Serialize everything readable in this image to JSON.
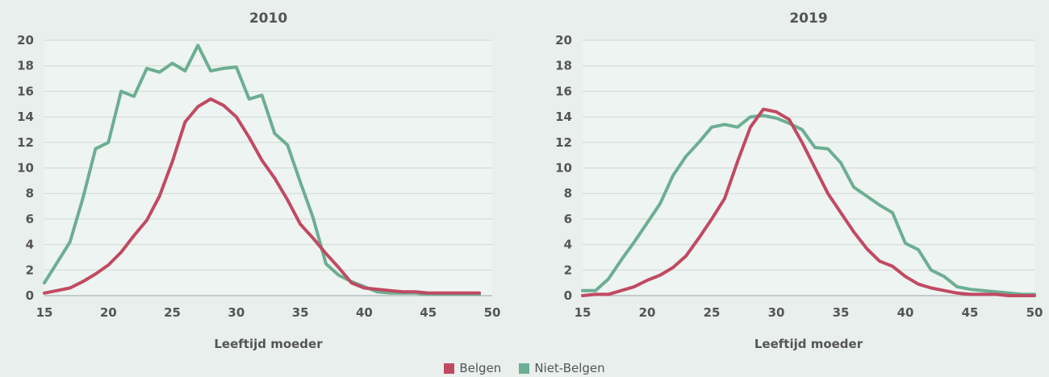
{
  "chart_data": [
    {
      "type": "line",
      "title": "2010",
      "xlabel": "Leeftijd moeder",
      "ylabel": "",
      "xlim": [
        15,
        50
      ],
      "ylim": [
        0,
        20
      ],
      "xticks": [
        "15",
        "20",
        "25",
        "30",
        "35",
        "40",
        "45",
        "50"
      ],
      "yticks": [
        "0",
        "2",
        "4",
        "6",
        "8",
        "10",
        "12",
        "14",
        "16",
        "18",
        "20"
      ],
      "grid": true,
      "x": [
        15,
        16,
        17,
        18,
        19,
        20,
        21,
        22,
        23,
        24,
        25,
        26,
        27,
        28,
        29,
        30,
        31,
        32,
        33,
        34,
        35,
        36,
        37,
        38,
        39,
        40,
        41,
        42,
        43,
        44,
        45,
        46,
        47,
        48,
        49
      ],
      "series": [
        {
          "name": "Belgen",
          "values": [
            0.2,
            0.4,
            0.6,
            1.1,
            1.7,
            2.4,
            3.4,
            4.7,
            5.9,
            7.8,
            10.5,
            13.6,
            14.8,
            15.4,
            14.9,
            14.0,
            12.4,
            10.6,
            9.2,
            7.5,
            5.6,
            4.5,
            3.3,
            2.2,
            1.0,
            0.6,
            0.5,
            0.4,
            0.3,
            0.3,
            0.2,
            0.2,
            0.2,
            0.2,
            0.2
          ]
        },
        {
          "name": "Niet-Belgen",
          "values": [
            1.0,
            2.6,
            4.2,
            7.6,
            11.5,
            12.0,
            16.0,
            15.6,
            17.8,
            17.5,
            18.2,
            17.6,
            19.6,
            17.6,
            17.8,
            17.9,
            15.4,
            15.7,
            12.7,
            11.8,
            8.9,
            6.1,
            2.5,
            1.6,
            1.1,
            0.7,
            0.3,
            0.2,
            0.2,
            0.2,
            0.1,
            0.1,
            0.1,
            0.1,
            0.1
          ]
        }
      ]
    },
    {
      "type": "line",
      "title": "2019",
      "xlabel": "Leeftijd moeder",
      "ylabel": "",
      "xlim": [
        15,
        50
      ],
      "ylim": [
        0,
        20
      ],
      "xticks": [
        "15",
        "20",
        "25",
        "30",
        "35",
        "40",
        "45",
        "50"
      ],
      "yticks": [
        "0",
        "2",
        "4",
        "6",
        "8",
        "10",
        "12",
        "14",
        "16",
        "18",
        "20"
      ],
      "grid": true,
      "x": [
        15,
        16,
        17,
        18,
        19,
        20,
        21,
        22,
        23,
        24,
        25,
        26,
        27,
        28,
        29,
        30,
        31,
        32,
        33,
        34,
        35,
        36,
        37,
        38,
        39,
        40,
        41,
        42,
        43,
        44,
        45,
        46,
        47,
        48,
        49,
        50
      ],
      "series": [
        {
          "name": "Belgen",
          "values": [
            0.0,
            0.1,
            0.1,
            0.4,
            0.7,
            1.2,
            1.6,
            2.2,
            3.1,
            4.5,
            6.0,
            7.6,
            10.5,
            13.2,
            14.6,
            14.4,
            13.8,
            12.0,
            10.0,
            8.0,
            6.5,
            5.0,
            3.7,
            2.7,
            2.3,
            1.5,
            0.9,
            0.6,
            0.4,
            0.2,
            0.1,
            0.1,
            0.1,
            0.0,
            0.0,
            0.0
          ]
        },
        {
          "name": "Niet-Belgen",
          "values": [
            0.4,
            0.4,
            1.3,
            2.8,
            4.2,
            5.7,
            7.2,
            9.4,
            10.9,
            12.0,
            13.2,
            13.4,
            13.2,
            14.0,
            14.1,
            13.9,
            13.5,
            13.0,
            11.6,
            11.5,
            10.4,
            8.5,
            7.8,
            7.1,
            6.5,
            4.1,
            3.6,
            2.0,
            1.5,
            0.7,
            0.5,
            0.4,
            0.3,
            0.2,
            0.1,
            0.1
          ]
        }
      ]
    }
  ],
  "legend": {
    "items": [
      {
        "label": "Belgen",
        "color": "#c04a62"
      },
      {
        "label": "Niet-Belgen",
        "color": "#6cae93"
      }
    ]
  }
}
